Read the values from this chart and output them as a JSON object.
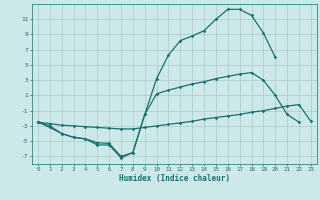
{
  "xlabel": "Humidex (Indice chaleur)",
  "bg_color": "#cce8e8",
  "grid_color": "#aacccc",
  "line_color": "#1a7070",
  "xlim": [
    -0.5,
    23.5
  ],
  "ylim": [
    -8,
    13
  ],
  "xticks": [
    0,
    1,
    2,
    3,
    4,
    5,
    6,
    7,
    8,
    9,
    10,
    11,
    12,
    13,
    14,
    15,
    16,
    17,
    18,
    19,
    20,
    21,
    22,
    23
  ],
  "yticks": [
    -7,
    -5,
    -3,
    -1,
    1,
    3,
    5,
    7,
    9,
    11
  ],
  "line1_x": [
    0,
    1,
    2,
    3,
    4,
    5,
    6,
    7,
    8,
    9,
    10,
    11,
    12,
    13,
    14,
    15,
    16,
    17,
    18,
    19,
    20
  ],
  "line1_y": [
    -2.5,
    -3.0,
    -4.0,
    -4.5,
    -4.7,
    -5.2,
    -5.3,
    -7.0,
    -6.5,
    -1.5,
    3.2,
    6.3,
    8.2,
    8.8,
    9.5,
    11.0,
    12.3,
    12.3,
    11.5,
    9.2,
    6.0
  ],
  "line2_x": [
    0,
    1,
    2,
    3,
    4,
    5,
    6,
    7,
    8,
    9,
    10,
    11,
    12,
    13,
    14,
    15,
    16,
    17,
    18,
    19,
    20,
    21,
    22,
    23
  ],
  "line2_y": [
    -2.5,
    -2.7,
    -2.9,
    -3.0,
    -3.1,
    -3.2,
    -3.3,
    -3.4,
    -3.4,
    -3.2,
    -3.0,
    -2.8,
    -2.6,
    -2.4,
    -2.1,
    -1.9,
    -1.7,
    -1.5,
    -1.2,
    -1.0,
    -0.7,
    -0.4,
    -0.2,
    -2.4
  ],
  "line3_x": [
    0,
    1,
    2,
    3,
    4,
    5,
    6,
    7,
    8,
    9,
    10,
    11,
    12,
    13,
    14,
    15,
    16,
    17,
    18,
    19,
    20,
    21,
    22
  ],
  "line3_y": [
    -2.5,
    -3.2,
    -4.0,
    -4.5,
    -4.7,
    -5.5,
    -5.5,
    -7.2,
    -6.5,
    -1.5,
    1.2,
    1.7,
    2.1,
    2.5,
    2.8,
    3.2,
    3.5,
    3.8,
    4.0,
    3.0,
    1.0,
    -1.5,
    -2.5
  ]
}
